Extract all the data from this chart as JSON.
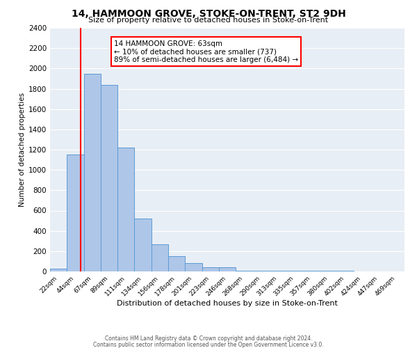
{
  "title": "14, HAMMOON GROVE, STOKE-ON-TRENT, ST2 9DH",
  "subtitle": "Size of property relative to detached houses in Stoke-on-Trent",
  "xlabel": "Distribution of detached houses by size in Stoke-on-Trent",
  "ylabel": "Number of detached properties",
  "bin_labels": [
    "22sqm",
    "44sqm",
    "67sqm",
    "89sqm",
    "111sqm",
    "134sqm",
    "156sqm",
    "178sqm",
    "201sqm",
    "223sqm",
    "246sqm",
    "268sqm",
    "290sqm",
    "313sqm",
    "335sqm",
    "357sqm",
    "380sqm",
    "402sqm",
    "424sqm",
    "447sqm",
    "469sqm"
  ],
  "bar_values": [
    30,
    1150,
    1950,
    1840,
    1220,
    520,
    265,
    150,
    80,
    40,
    40,
    10,
    10,
    10,
    10,
    10,
    10,
    5,
    0,
    0,
    0
  ],
  "bar_color": "#aec6e8",
  "bar_edge_color": "#5b9bd5",
  "vline_color": "red",
  "annotation_text": "14 HAMMOON GROVE: 63sqm\n← 10% of detached houses are smaller (737)\n89% of semi-detached houses are larger (6,484) →",
  "ylim": [
    0,
    2400
  ],
  "yticks": [
    0,
    200,
    400,
    600,
    800,
    1000,
    1200,
    1400,
    1600,
    1800,
    2000,
    2200,
    2400
  ],
  "bg_color": "#e8eef5",
  "grid_color": "white",
  "footer_line1": "Contains HM Land Registry data © Crown copyright and database right 2024.",
  "footer_line2": "Contains public sector information licensed under the Open Government Licence v3.0."
}
